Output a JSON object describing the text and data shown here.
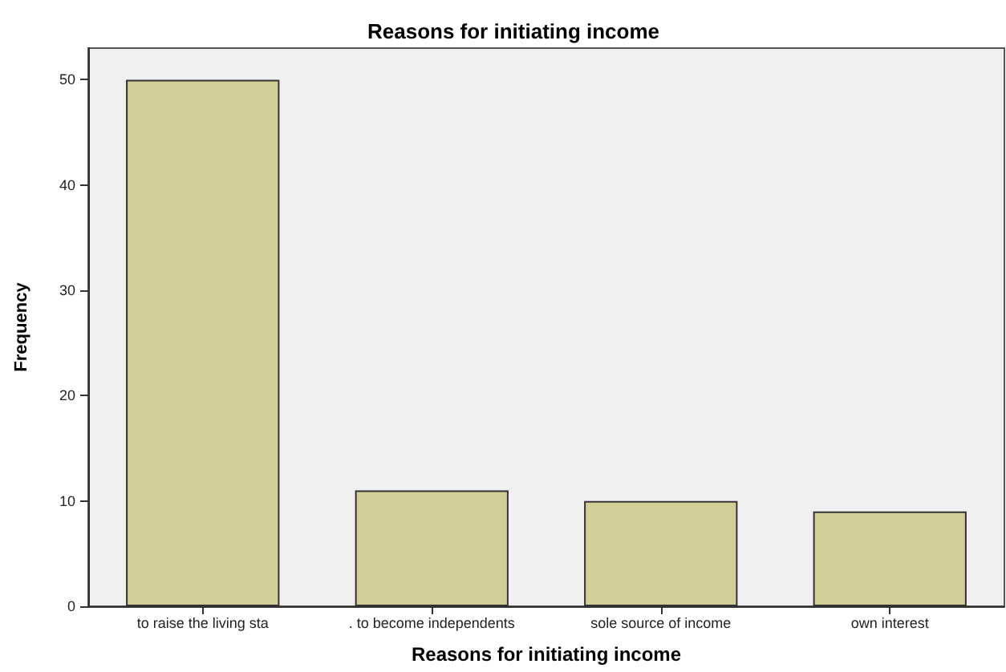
{
  "chart_data": {
    "type": "bar",
    "title": "Reasons for initiating income",
    "xlabel": "Reasons for initiating income",
    "ylabel": "Frequency",
    "categories": [
      "to raise the living sta",
      ". to become independents",
      "sole source of income",
      "own interest"
    ],
    "values": [
      50,
      11,
      10,
      9
    ],
    "color": "#d3ce97",
    "ylim": [
      0,
      53
    ],
    "yticks": [
      0,
      10,
      20,
      30,
      40,
      50
    ],
    "grid": false
  }
}
